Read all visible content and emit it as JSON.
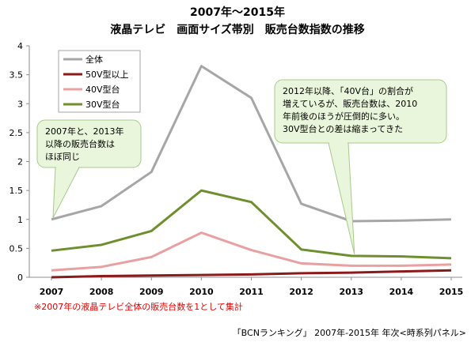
{
  "chart_data": {
    "type": "line",
    "title": "2007年～2015年",
    "subtitle": "液晶テレビ　画面サイズ帯別　販売台数指数の推移",
    "categories": [
      "2007",
      "2008",
      "2009",
      "2010",
      "2011",
      "2012",
      "2013",
      "2014",
      "2015"
    ],
    "ylim": [
      0,
      4
    ],
    "yticks": [
      "0",
      "0.5",
      "1",
      "1.5",
      "2",
      "2.5",
      "3",
      "3.5",
      "4"
    ],
    "grid": false,
    "legend_position": "top-left",
    "series": [
      {
        "name": "全体",
        "color": "#a6a6a6",
        "values": [
          1.0,
          1.23,
          1.82,
          3.65,
          3.1,
          1.27,
          0.97,
          0.98,
          1.0
        ]
      },
      {
        "name": "50V型以上",
        "color": "#8b1a1a",
        "values": [
          0.0,
          0.02,
          0.03,
          0.04,
          0.05,
          0.07,
          0.08,
          0.1,
          0.12
        ]
      },
      {
        "name": "40V型台",
        "color": "#e8a0a0",
        "values": [
          0.12,
          0.18,
          0.35,
          0.77,
          0.47,
          0.24,
          0.2,
          0.2,
          0.22
        ]
      },
      {
        "name": "30V型台",
        "color": "#6f8f2f",
        "values": [
          0.46,
          0.56,
          0.8,
          1.5,
          1.3,
          0.48,
          0.37,
          0.36,
          0.33
        ]
      }
    ],
    "annotations": [
      {
        "lines": [
          "2007年と、2013年",
          "以降の販売台数は",
          "ほぼ同じ"
        ]
      },
      {
        "lines": [
          "2012年以降、「40V台」の割合が",
          "増えているが、販売台数は、2010",
          "年前後のほうが圧倒的に多い。",
          "30V型台との差は縮まってきた"
        ]
      }
    ]
  },
  "footer": {
    "note": "※2007年の液晶テレビ全体の販売台数を1として集計",
    "source": "「BCNランキング」 2007年-2015年 年次<時系列パネル>"
  }
}
